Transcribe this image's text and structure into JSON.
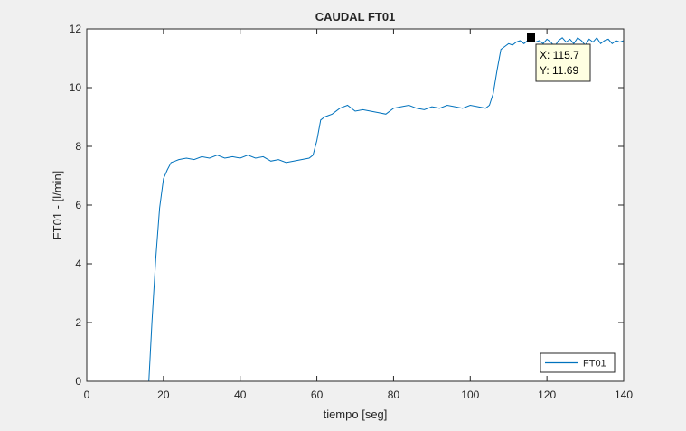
{
  "chart_data": {
    "type": "line",
    "title": "CAUDAL FT01",
    "xlabel": "tiempo [seg]",
    "ylabel": "FT01 - [l/min]",
    "xlim": [
      0,
      140
    ],
    "ylim": [
      0,
      12
    ],
    "xticks": [
      0,
      20,
      40,
      60,
      80,
      100,
      120,
      140
    ],
    "yticks": [
      0,
      2,
      4,
      6,
      8,
      10,
      12
    ],
    "grid": false,
    "legend": {
      "position": "bottom-right",
      "entries": [
        "FT01"
      ]
    },
    "series": [
      {
        "name": "FT01",
        "color": "#0072bd",
        "x": [
          0,
          16.2,
          17,
          18,
          19,
          20,
          21,
          22,
          23,
          24,
          26,
          28,
          30,
          32,
          34,
          36,
          38,
          40,
          42,
          44,
          46,
          48,
          50,
          52,
          54,
          56,
          58,
          59,
          60,
          61,
          62,
          63,
          64,
          66,
          68,
          70,
          72,
          74,
          76,
          78,
          80,
          82,
          84,
          86,
          88,
          90,
          92,
          94,
          96,
          98,
          100,
          102,
          104,
          105,
          106,
          107,
          108,
          109,
          110,
          111,
          112,
          113,
          114,
          115.7,
          117,
          118,
          119,
          120,
          121,
          122,
          123,
          124,
          125,
          126,
          127,
          128,
          129,
          130,
          131,
          132,
          133,
          134,
          135,
          136,
          137,
          138,
          139,
          140
        ],
        "y": [
          0,
          0,
          2.0,
          4.2,
          5.9,
          6.9,
          7.2,
          7.45,
          7.5,
          7.55,
          7.6,
          7.55,
          7.65,
          7.6,
          7.7,
          7.6,
          7.65,
          7.6,
          7.7,
          7.6,
          7.65,
          7.5,
          7.55,
          7.45,
          7.5,
          7.55,
          7.6,
          7.7,
          8.2,
          8.9,
          9.0,
          9.05,
          9.1,
          9.3,
          9.4,
          9.2,
          9.25,
          9.2,
          9.15,
          9.1,
          9.3,
          9.35,
          9.4,
          9.3,
          9.25,
          9.35,
          9.3,
          9.4,
          9.35,
          9.3,
          9.4,
          9.35,
          9.3,
          9.4,
          9.8,
          10.6,
          11.3,
          11.4,
          11.5,
          11.45,
          11.55,
          11.6,
          11.5,
          11.69,
          11.55,
          11.6,
          11.5,
          11.65,
          11.55,
          11.4,
          11.6,
          11.7,
          11.55,
          11.65,
          11.5,
          11.7,
          11.6,
          11.45,
          11.65,
          11.55,
          11.7,
          11.5,
          11.6,
          11.65,
          11.5,
          11.6,
          11.55,
          11.6
        ]
      }
    ],
    "datatip": {
      "x": 115.7,
      "y": 11.69,
      "x_text": "X: 115.7",
      "y_text": "Y: 11.69"
    }
  }
}
